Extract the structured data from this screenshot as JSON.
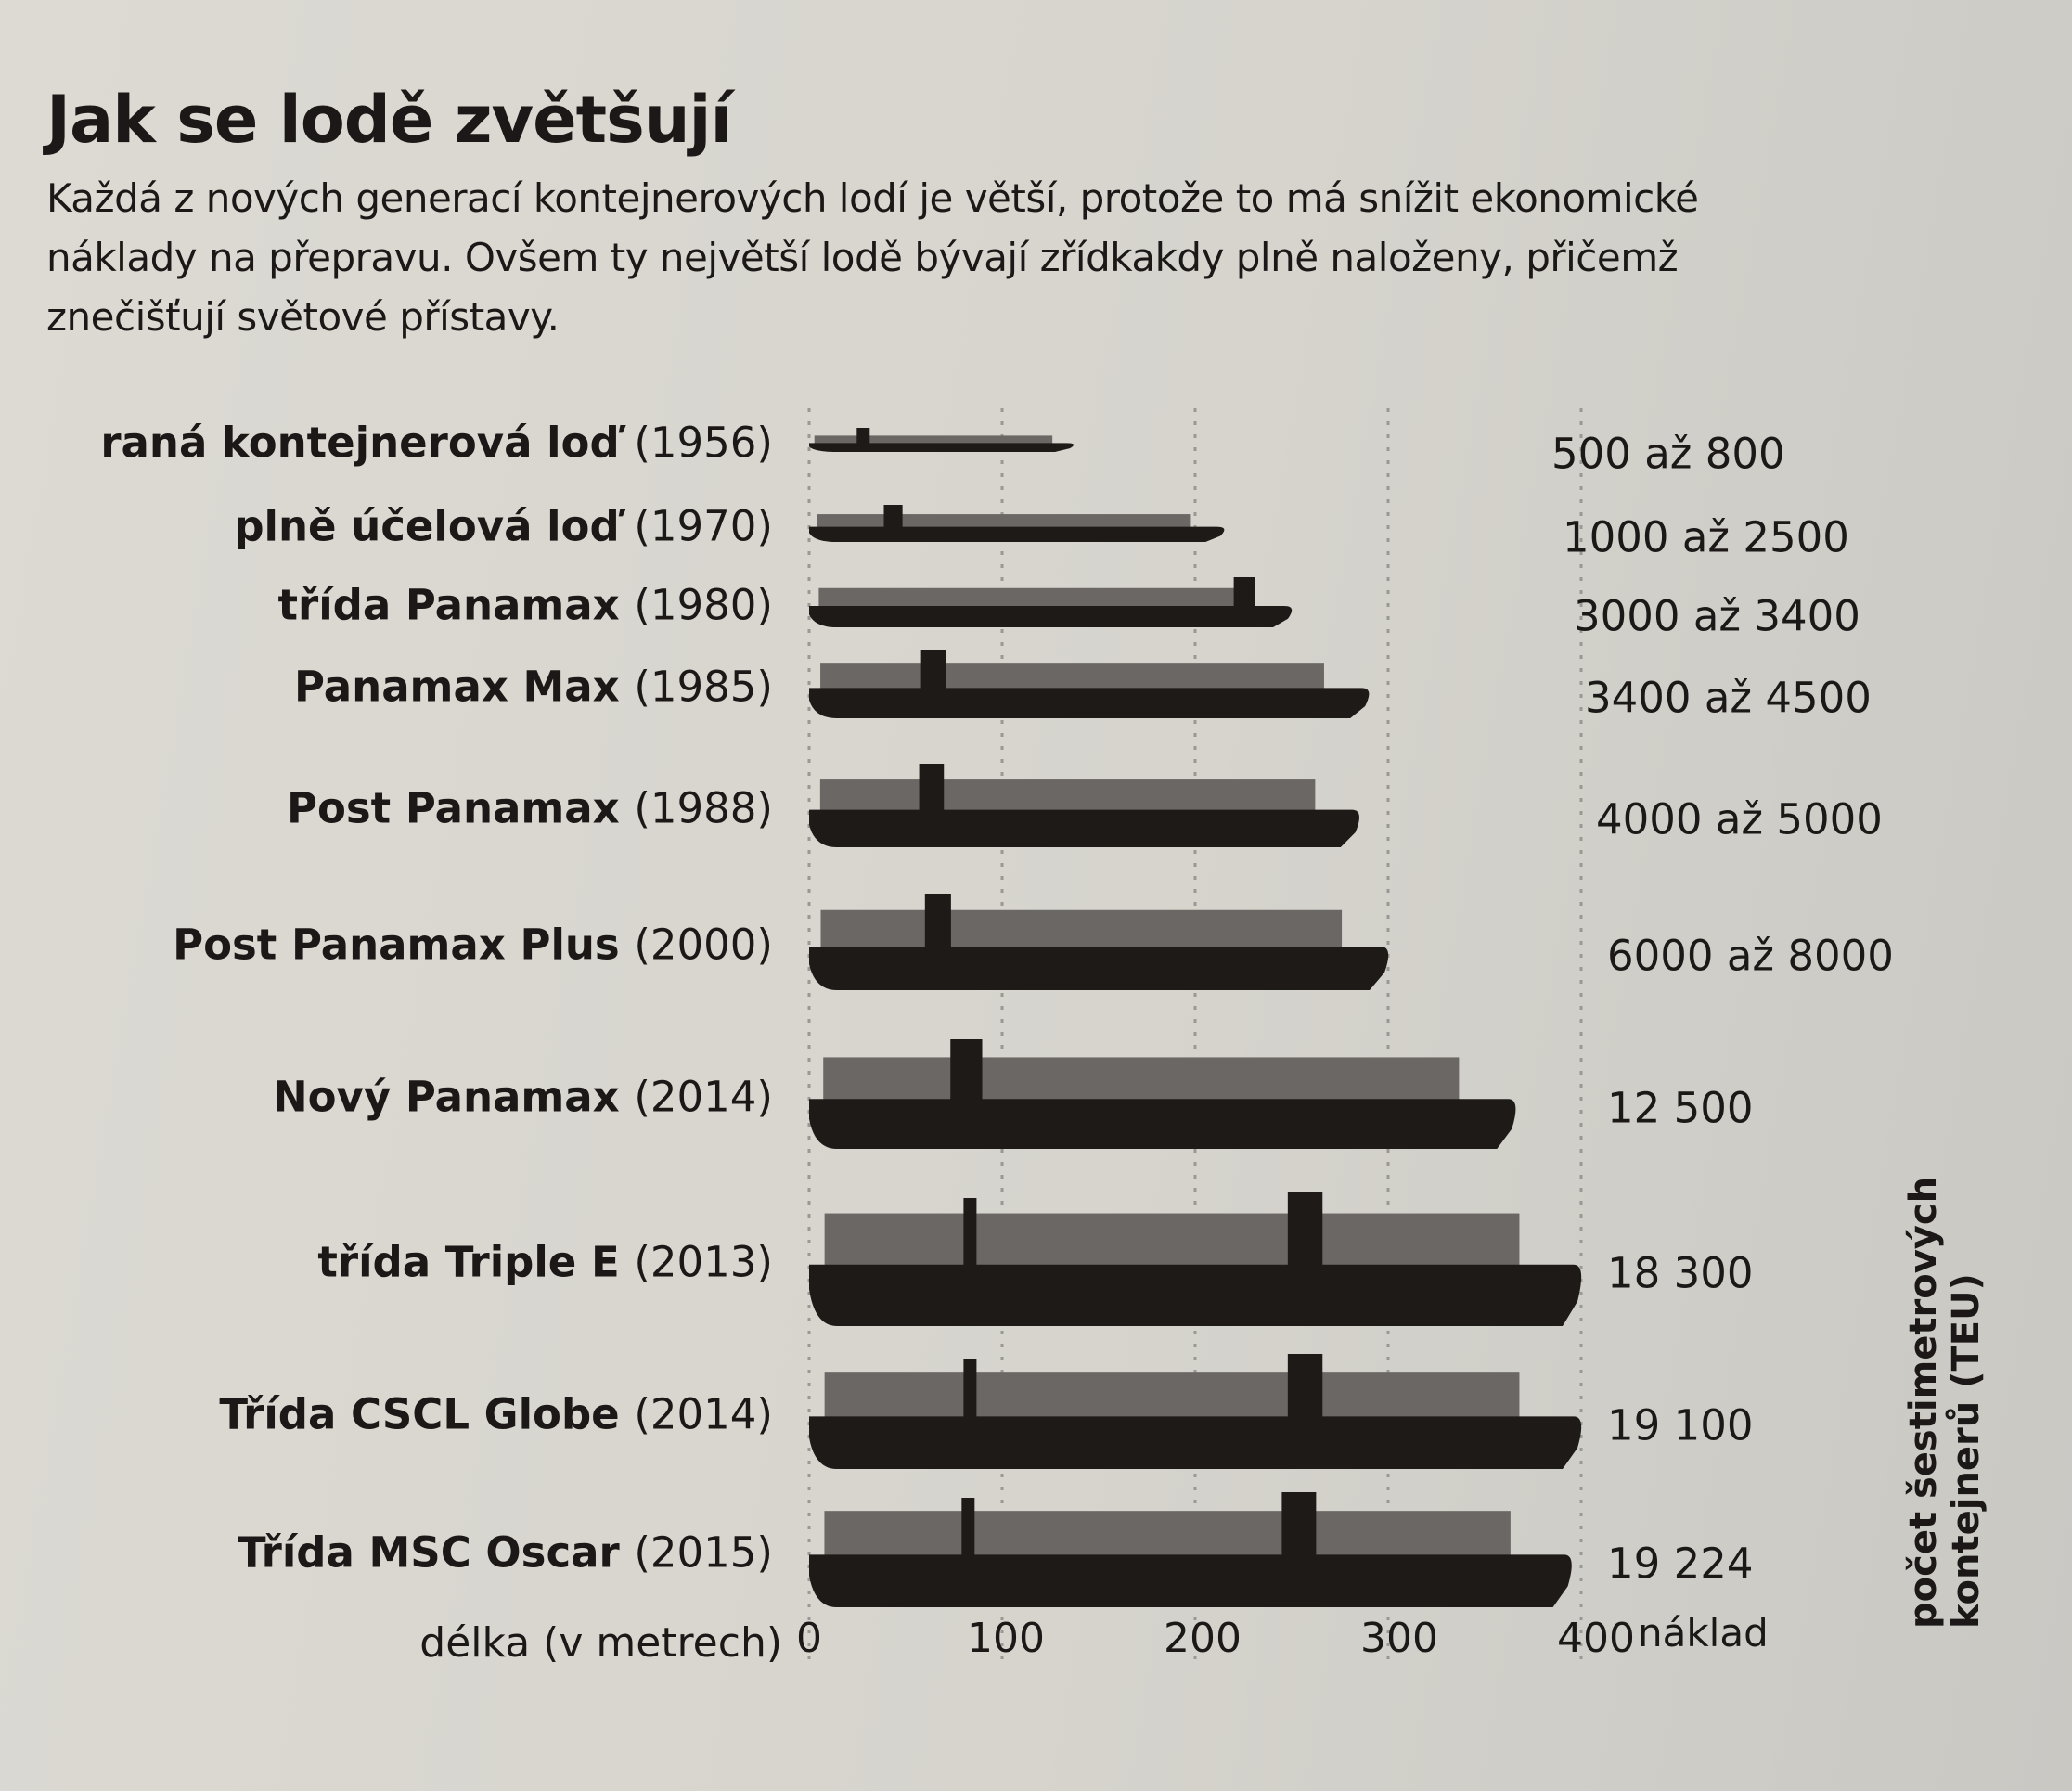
{
  "title": "Jak se lodě zvětšují",
  "subtitle": "Každá z nových generací kontejnerových lodí je větší, protože to má snížit ekonomické náklady na přepravu. Ovšem ty největší lodě bývají zřídkakdy plně naloženy, přičemž znečišťují světové přístavy.",
  "chart_data": {
    "type": "bar",
    "orientation": "horizontal",
    "xlabel": "délka (v metrech)",
    "xlim": [
      0,
      400
    ],
    "xticks": [
      "0",
      "100",
      "200",
      "300",
      "400"
    ],
    "grid": true,
    "capacity_header": "náklad",
    "capacity_axis_label": "počet šestimetrových kontejnerů (TEU)",
    "colors": {
      "hull": "#1e1a18",
      "containers": "#6b6765",
      "grid": "#9a9893"
    },
    "categories": [
      {
        "name": "raná kontejnerová loď",
        "year": "(1956)",
        "length": 137,
        "capacity": "500 až 800"
      },
      {
        "name": "plně účelová loď",
        "year": "(1970)",
        "length": 215,
        "capacity": "1000 až 2500"
      },
      {
        "name": "třída Panamax",
        "year": "(1980)",
        "length": 250,
        "capacity": "3000 až 3400"
      },
      {
        "name": "Panamax Max",
        "year": "(1985)",
        "length": 290,
        "capacity": "3400 až 4500"
      },
      {
        "name": "Post Panamax",
        "year": "(1988)",
        "length": 285,
        "capacity": "4000 až 5000"
      },
      {
        "name": "Post Panamax Plus",
        "year": "(2000)",
        "length": 300,
        "capacity": "6000 až 8000"
      },
      {
        "name": "Nový Panamax",
        "year": "(2014)",
        "length": 366,
        "capacity": "12 500"
      },
      {
        "name": "třída Triple E",
        "year": "(2013)",
        "length": 400,
        "capacity": "18 300"
      },
      {
        "name": "Třída CSCL Globe",
        "year": "(2014)",
        "length": 400,
        "capacity": "19 100"
      },
      {
        "name": "Třída MSC Oscar",
        "year": "(2015)",
        "length": 395,
        "capacity": "19 224"
      }
    ]
  }
}
